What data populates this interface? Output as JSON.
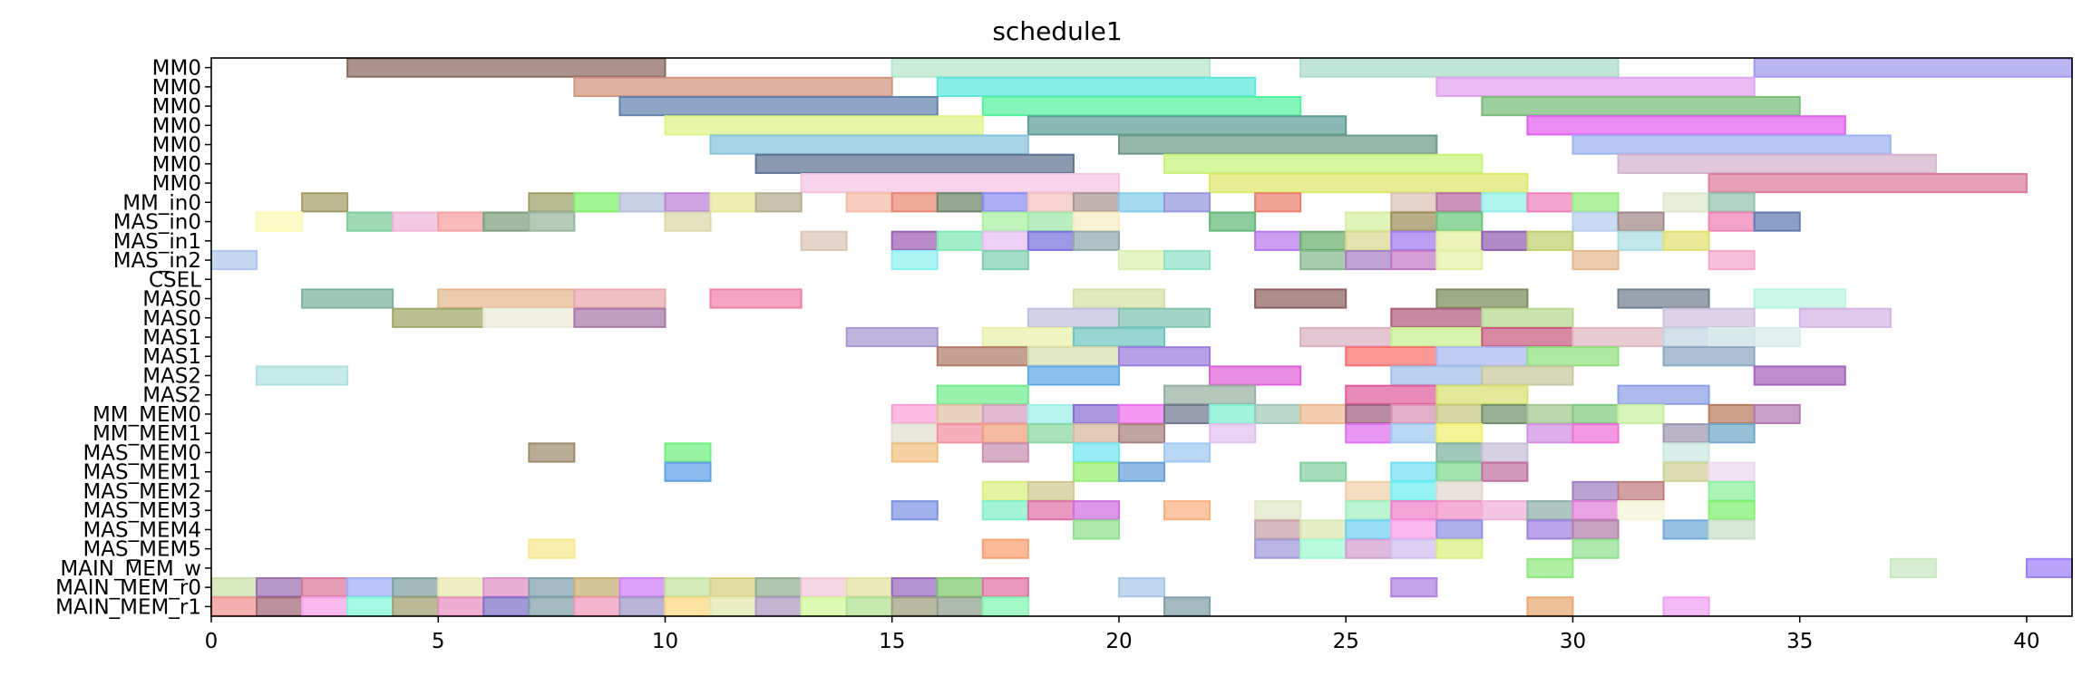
{
  "chart_data": {
    "type": "gantt",
    "title": "schedule1",
    "xlim": [
      0,
      41
    ],
    "x_ticks": [
      0,
      5,
      10,
      15,
      20,
      25,
      30,
      35,
      40
    ],
    "rows": [
      "MM0",
      "MM0",
      "MM0",
      "MM0",
      "MM0",
      "MM0",
      "MM0",
      "MM_in0",
      "MAS_in0",
      "MAS_in1",
      "MAS_in2",
      "CSEL",
      "MAS0",
      "MAS0",
      "MAS1",
      "MAS1",
      "MAS2",
      "MAS2",
      "MM_MEM0",
      "MM_MEM1",
      "MAS_MEM0",
      "MAS_MEM1",
      "MAS_MEM2",
      "MAS_MEM3",
      "MAS_MEM4",
      "MAS_MEM5",
      "MAIN_MEM_w",
      "MAIN_MEM_r0",
      "MAIN_MEM_r1"
    ],
    "bars": [
      [
        [
          3,
          10,
          "#8b6a5e"
        ],
        [
          15,
          22,
          "#b5e6cc"
        ],
        [
          24,
          31,
          "#a9dccb"
        ],
        [
          34,
          41,
          "#9f9af0"
        ]
      ],
      [
        [
          8,
          15,
          "#d2957f"
        ],
        [
          16,
          23,
          "#5ce6dd"
        ],
        [
          27,
          34,
          "#e0a4f0"
        ]
      ],
      [
        [
          9,
          16,
          "#6282ad"
        ],
        [
          17,
          24,
          "#54f09e"
        ],
        [
          28,
          35,
          "#79bd7a"
        ]
      ],
      [
        [
          10,
          17,
          "#dcf585"
        ],
        [
          18,
          25,
          "#5e9c95"
        ],
        [
          29,
          36,
          "#e35ff0"
        ]
      ],
      [
        [
          11,
          18,
          "#88c4dc"
        ],
        [
          20,
          27,
          "#6e9a89"
        ],
        [
          30,
          37,
          "#9db3f0"
        ]
      ],
      [
        [
          12,
          19,
          "#5c7291"
        ],
        [
          21,
          28,
          "#c6f27a"
        ],
        [
          31,
          38,
          "#d4b3cc"
        ]
      ],
      [
        [
          13,
          20,
          "#f2c4e0"
        ],
        [
          22,
          29,
          "#dde869"
        ],
        [
          33,
          40,
          "#dc7c9c"
        ]
      ],
      [
        [
          2,
          3,
          "#a59c6a"
        ],
        [
          7,
          8,
          "#9ca067"
        ],
        [
          8,
          9,
          "#7ef06c"
        ],
        [
          9,
          10,
          "#b6bed8"
        ],
        [
          10,
          11,
          "#bc82d8"
        ],
        [
          11,
          12,
          "#e8e898"
        ],
        [
          12,
          13,
          "#b5ad8f"
        ],
        [
          14,
          15,
          "#f4bda8"
        ],
        [
          15,
          16,
          "#e88874"
        ],
        [
          16,
          17,
          "#6c846a"
        ],
        [
          17,
          18,
          "#8a8cf0"
        ],
        [
          18,
          19,
          "#f2c3c0"
        ],
        [
          19,
          20,
          "#a89593"
        ],
        [
          20,
          21,
          "#84cde8"
        ],
        [
          21,
          22,
          "#9597dd"
        ],
        [
          23,
          24,
          "#e8806e"
        ],
        [
          26,
          27,
          "#ddc2b6"
        ],
        [
          27,
          28,
          "#bb6ba8"
        ],
        [
          28,
          29,
          "#92f0e8"
        ],
        [
          29,
          30,
          "#ee80bd"
        ],
        [
          30,
          31,
          "#94ee7e"
        ],
        [
          32,
          33,
          "#dee8cb"
        ],
        [
          33,
          34,
          "#92c2ac"
        ]
      ],
      [
        [
          1,
          2,
          "#fcfab3"
        ],
        [
          3,
          4,
          "#7ccc98"
        ],
        [
          4,
          5,
          "#eeb5d8"
        ],
        [
          5,
          6,
          "#f6a0a0"
        ],
        [
          6,
          7,
          "#7c9e7c"
        ],
        [
          7,
          8,
          "#9ab5a0"
        ],
        [
          10,
          11,
          "#d8d8a8"
        ],
        [
          17,
          18,
          "#a9f0a0"
        ],
        [
          18,
          19,
          "#a0e8a8"
        ],
        [
          19,
          20,
          "#f6ecc3"
        ],
        [
          22,
          23,
          "#62b874"
        ],
        [
          25,
          26,
          "#d4ee9c"
        ],
        [
          26,
          27,
          "#9c8c5c"
        ],
        [
          27,
          28,
          "#6cc77c"
        ],
        [
          30,
          31,
          "#b6cff0"
        ],
        [
          31,
          32,
          "#a28888"
        ],
        [
          33,
          34,
          "#ef80b4"
        ],
        [
          34,
          35,
          "#607ab0"
        ]
      ],
      [
        [
          13,
          14,
          "#dcc5b5"
        ],
        [
          15,
          16,
          "#9c60b4"
        ],
        [
          16,
          17,
          "#80e8b4"
        ],
        [
          17,
          18,
          "#e4bff0"
        ],
        [
          18,
          19,
          "#7870dc"
        ],
        [
          19,
          20,
          "#90aab0"
        ],
        [
          23,
          24,
          "#b678e8"
        ],
        [
          24,
          25,
          "#66ae6a"
        ],
        [
          25,
          26,
          "#d8d890"
        ],
        [
          26,
          27,
          "#a078f0"
        ],
        [
          27,
          28,
          "#e4f0a0"
        ],
        [
          28,
          29,
          "#9060b0"
        ],
        [
          29,
          30,
          "#c0d070"
        ],
        [
          31,
          32,
          "#aadce0"
        ],
        [
          32,
          33,
          "#e0e070"
        ]
      ],
      [
        [
          0,
          1,
          "#b0c8ea"
        ],
        [
          15,
          16,
          "#8cf0f0"
        ],
        [
          17,
          18,
          "#80d0b0"
        ],
        [
          20,
          21,
          "#dcf0b0"
        ],
        [
          21,
          22,
          "#92e0c8"
        ],
        [
          24,
          25,
          "#88b890"
        ],
        [
          25,
          26,
          "#a880c0"
        ],
        [
          26,
          27,
          "#c078c4"
        ],
        [
          27,
          28,
          "#e4f0a8"
        ],
        [
          30,
          31,
          "#e4b890"
        ],
        [
          33,
          34,
          "#f4a8cc"
        ]
      ],
      [],
      [
        [
          2,
          4,
          "#7cb09a"
        ],
        [
          5,
          8,
          "#e4b890"
        ],
        [
          8,
          10,
          "#e8a8b0"
        ],
        [
          11,
          13,
          "#f080a8"
        ],
        [
          19,
          21,
          "#d4e0a8"
        ],
        [
          23,
          25,
          "#8c6060"
        ],
        [
          27,
          29,
          "#7c8c5c"
        ],
        [
          31,
          33,
          "#708090"
        ],
        [
          34,
          36,
          "#b8f4e0"
        ]
      ],
      [
        [
          4,
          6,
          "#a0a868"
        ],
        [
          6,
          8,
          "#ecead8"
        ],
        [
          8,
          10,
          "#a878a8"
        ],
        [
          18,
          20,
          "#c0c0e0"
        ],
        [
          20,
          22,
          "#80c4b0"
        ],
        [
          26,
          28,
          "#b05c7c"
        ],
        [
          28,
          30,
          "#b8d890"
        ],
        [
          32,
          34,
          "#d0c0e0"
        ],
        [
          35,
          37,
          "#d4b4e4"
        ]
      ],
      [
        [
          14,
          16,
          "#a898d0"
        ],
        [
          17,
          19,
          "#eaf0a8"
        ],
        [
          19,
          21,
          "#70c4c0"
        ],
        [
          24,
          26,
          "#d8b0c0"
        ],
        [
          26,
          28,
          "#c8f090"
        ],
        [
          28,
          30,
          "#c85c80"
        ],
        [
          30,
          32,
          "#e0b8c0"
        ],
        [
          32,
          34,
          "#c4d4e0"
        ],
        [
          33,
          35,
          "#d8ecec"
        ]
      ],
      [
        [
          16,
          18,
          "#b07c68"
        ],
        [
          18,
          20,
          "#d4dcb0"
        ],
        [
          20,
          22,
          "#9c7cdc"
        ],
        [
          25,
          27,
          "#f87070"
        ],
        [
          27,
          29,
          "#a8b8f0"
        ],
        [
          29,
          31,
          "#90e080"
        ],
        [
          32,
          34,
          "#8ca8c4"
        ]
      ],
      [
        [
          1,
          3,
          "#b0e0e0"
        ],
        [
          18,
          20,
          "#60a8e8"
        ],
        [
          22,
          24,
          "#e060d8"
        ],
        [
          26,
          28,
          "#a0c0e8"
        ],
        [
          28,
          30,
          "#c8c8a0"
        ],
        [
          34,
          36,
          "#a064b8"
        ]
      ],
      [
        [
          16,
          18,
          "#70ec8c"
        ],
        [
          21,
          23,
          "#98b0a0"
        ],
        [
          25,
          27,
          "#e05c9c"
        ],
        [
          27,
          29,
          "#d8e070"
        ],
        [
          31,
          33,
          "#8ca0e8"
        ]
      ],
      [
        [
          15,
          16,
          "#f8a0d8"
        ],
        [
          16,
          17,
          "#e0c0a8"
        ],
        [
          17,
          18,
          "#d4a0b8"
        ],
        [
          18,
          19,
          "#a0f0e8"
        ],
        [
          19,
          20,
          "#8870d0"
        ],
        [
          20,
          21,
          "#f070f0"
        ],
        [
          21,
          22,
          "#707890"
        ],
        [
          22,
          23,
          "#80f0d0"
        ],
        [
          23,
          24,
          "#a0c8b8"
        ],
        [
          24,
          25,
          "#f0b890"
        ],
        [
          25,
          26,
          "#a06080"
        ],
        [
          26,
          27,
          "#d890b0"
        ],
        [
          27,
          28,
          "#c8c880"
        ],
        [
          28,
          29,
          "#70906c"
        ],
        [
          29,
          30,
          "#a0c890"
        ],
        [
          30,
          31,
          "#80c880"
        ],
        [
          31,
          32,
          "#c8f0a0"
        ],
        [
          33,
          34,
          "#b87c60"
        ],
        [
          34,
          35,
          "#b07cb0"
        ]
      ],
      [
        [
          15,
          16,
          "#e0e0d0"
        ],
        [
          16,
          17,
          "#f090a0"
        ],
        [
          17,
          18,
          "#f0a080"
        ],
        [
          18,
          19,
          "#88d8a0"
        ],
        [
          19,
          20,
          "#d8b8a0"
        ],
        [
          20,
          21,
          "#a88080"
        ],
        [
          22,
          23,
          "#e0c0f0"
        ],
        [
          25,
          26,
          "#e070f0"
        ],
        [
          26,
          27,
          "#a0c8f0"
        ],
        [
          27,
          28,
          "#f0f070"
        ],
        [
          29,
          30,
          "#d090e0"
        ],
        [
          30,
          31,
          "#f070d8"
        ],
        [
          32,
          33,
          "#a098b0"
        ],
        [
          33,
          34,
          "#70a8c8"
        ]
      ],
      [
        [
          7,
          8,
          "#9c8c6c"
        ],
        [
          10,
          11,
          "#70f080"
        ],
        [
          15,
          16,
          "#f0c080"
        ],
        [
          17,
          18,
          "#c890b0"
        ],
        [
          19,
          20,
          "#70e8f0"
        ],
        [
          21,
          22,
          "#a0c8f0"
        ],
        [
          27,
          28,
          "#80b0a0"
        ],
        [
          28,
          29,
          "#c8c0d8"
        ],
        [
          32,
          33,
          "#c8e8e0"
        ]
      ],
      [
        [
          10,
          11,
          "#60a0e8"
        ],
        [
          19,
          20,
          "#98f070"
        ],
        [
          20,
          21,
          "#68a0d8"
        ],
        [
          24,
          25,
          "#80d0a0"
        ],
        [
          26,
          27,
          "#70e0f0"
        ],
        [
          27,
          28,
          "#80d890"
        ],
        [
          28,
          29,
          "#c070a0"
        ],
        [
          32,
          33,
          "#d0d098"
        ],
        [
          33,
          34,
          "#ecd8f0"
        ]
      ],
      [
        [
          17,
          18,
          "#d8f080"
        ],
        [
          18,
          19,
          "#d0c890"
        ],
        [
          25,
          26,
          "#f0d0a8"
        ],
        [
          26,
          27,
          "#70f0f0"
        ],
        [
          27,
          28,
          "#e0d8d0"
        ],
        [
          30,
          31,
          "#a080c0"
        ],
        [
          31,
          32,
          "#c07c80"
        ],
        [
          33,
          34,
          "#8cf0a0"
        ]
      ],
      [
        [
          15,
          16,
          "#7c94e0"
        ],
        [
          17,
          18,
          "#80f0c8"
        ],
        [
          18,
          19,
          "#e070a8"
        ],
        [
          19,
          20,
          "#d070e0"
        ],
        [
          21,
          22,
          "#f8b080"
        ],
        [
          23,
          24,
          "#e0e8c8"
        ],
        [
          25,
          26,
          "#a0f0c0"
        ],
        [
          26,
          27,
          "#f080c8"
        ],
        [
          27,
          28,
          "#f090c8"
        ],
        [
          28,
          29,
          "#f0b0d8"
        ],
        [
          29,
          30,
          "#90b0a8"
        ],
        [
          30,
          31,
          "#e080d8"
        ],
        [
          31,
          32,
          "#f4f4d8"
        ],
        [
          33,
          34,
          "#80f070"
        ]
      ],
      [
        [
          19,
          20,
          "#90e090"
        ],
        [
          23,
          24,
          "#c8a0a8"
        ],
        [
          24,
          25,
          "#d8e8b0"
        ],
        [
          25,
          26,
          "#70d0f0"
        ],
        [
          26,
          27,
          "#f8a0e8"
        ],
        [
          27,
          28,
          "#9090e0"
        ],
        [
          29,
          30,
          "#a080e0"
        ],
        [
          30,
          31,
          "#b080a8"
        ],
        [
          32,
          33,
          "#70a8d8"
        ],
        [
          33,
          34,
          "#c8e0c8"
        ]
      ],
      [
        [
          7,
          8,
          "#f8e890"
        ],
        [
          17,
          18,
          "#f8a070"
        ],
        [
          23,
          24,
          "#a098d8"
        ],
        [
          24,
          25,
          "#a0f8d0"
        ],
        [
          25,
          26,
          "#d0a0d0"
        ],
        [
          26,
          27,
          "#d0c0f0"
        ],
        [
          27,
          28,
          "#d8f080"
        ],
        [
          30,
          31,
          "#90e090"
        ]
      ],
      [
        [
          29,
          30,
          "#90e880"
        ],
        [
          37,
          38,
          "#c8e8c0"
        ],
        [
          40,
          41,
          "#9c80f8"
        ]
      ],
      [
        [
          0,
          1,
          "#c8e0a8"
        ],
        [
          1,
          2,
          "#9870b0"
        ],
        [
          2,
          3,
          "#d87898"
        ],
        [
          3,
          4,
          "#a0b0f8"
        ],
        [
          4,
          5,
          "#80a0a0"
        ],
        [
          5,
          6,
          "#e8e8b0"
        ],
        [
          6,
          7,
          "#e090c8"
        ],
        [
          7,
          8,
          "#80a0b0"
        ],
        [
          8,
          9,
          "#c8b070"
        ],
        [
          9,
          10,
          "#d080f8"
        ],
        [
          10,
          11,
          "#c0e0a0"
        ],
        [
          11,
          12,
          "#d8d080"
        ],
        [
          12,
          13,
          "#90b090"
        ],
        [
          13,
          14,
          "#f0c8d8"
        ],
        [
          14,
          15,
          "#e0e0a0"
        ],
        [
          15,
          16,
          "#9868c0"
        ],
        [
          16,
          17,
          "#80c870"
        ],
        [
          17,
          18,
          "#e070a0"
        ],
        [
          20,
          21,
          "#a8c8e8"
        ],
        [
          26,
          27,
          "#b080e0"
        ]
      ],
      [
        [
          0,
          1,
          "#f09090"
        ],
        [
          1,
          2,
          "#a06878"
        ],
        [
          2,
          3,
          "#f8a0e8"
        ],
        [
          3,
          4,
          "#80f8d8"
        ],
        [
          4,
          5,
          "#a0a070"
        ],
        [
          5,
          6,
          "#e890c0"
        ],
        [
          6,
          7,
          "#8070c8"
        ],
        [
          7,
          8,
          "#80a0a8"
        ],
        [
          8,
          9,
          "#f098b8"
        ],
        [
          9,
          10,
          "#a098c8"
        ],
        [
          10,
          11,
          "#f8d880"
        ],
        [
          11,
          12,
          "#e0e8b0"
        ],
        [
          12,
          13,
          "#b098c0"
        ],
        [
          13,
          14,
          "#d0f898"
        ],
        [
          14,
          15,
          "#b0e090"
        ],
        [
          15,
          16,
          "#a0a080"
        ],
        [
          16,
          17,
          "#90a090"
        ],
        [
          17,
          18,
          "#80f8b0"
        ],
        [
          21,
          22,
          "#80a0a8"
        ],
        [
          29,
          30,
          "#e8a870"
        ],
        [
          32,
          33,
          "#f0a0f0"
        ]
      ]
    ]
  }
}
